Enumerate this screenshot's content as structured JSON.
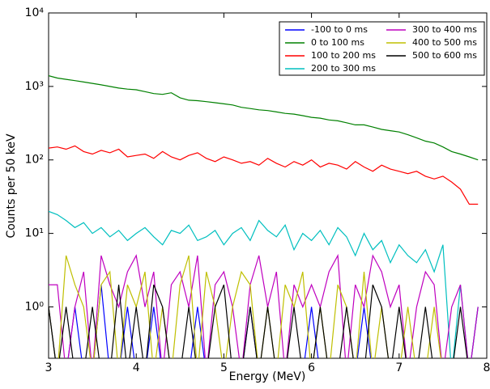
{
  "chart_data": {
    "type": "line",
    "xlabel": "Energy (MeV)",
    "ylabel": "Counts per 50 keV",
    "log_y": true,
    "legend": "upper right",
    "xlim": [
      3,
      8
    ],
    "xticks": [
      3,
      4,
      5,
      6,
      7,
      8
    ],
    "ylim": [
      0.2,
      10000
    ],
    "yticks": [
      {
        "value": 1,
        "label": "10⁰"
      },
      {
        "value": 10,
        "label": "10¹"
      },
      {
        "value": 100,
        "label": "10²"
      },
      {
        "value": 1000,
        "label": "10³"
      },
      {
        "value": 10000,
        "label": "10⁴"
      }
    ],
    "x": [
      3.0,
      3.1,
      3.2,
      3.3,
      3.4,
      3.5,
      3.6,
      3.7,
      3.8,
      3.9,
      4.0,
      4.1,
      4.2,
      4.3,
      4.4,
      4.5,
      4.6,
      4.7,
      4.8,
      4.9,
      5.0,
      5.1,
      5.2,
      5.3,
      5.4,
      5.5,
      5.6,
      5.7,
      5.8,
      5.9,
      6.0,
      6.1,
      6.2,
      6.3,
      6.4,
      6.5,
      6.6,
      6.7,
      6.8,
      6.9,
      7.0,
      7.1,
      7.2,
      7.3,
      7.4,
      7.5,
      7.6,
      7.7,
      7.8,
      7.9
    ],
    "series": [
      {
        "name": "-100 to 0 ms",
        "color": "#0000ff",
        "values": [
          1,
          0,
          0,
          1,
          0,
          0,
          2,
          0,
          0,
          1,
          0,
          0,
          1,
          0,
          0,
          0,
          0,
          1,
          0,
          0,
          0,
          0,
          0,
          1,
          0,
          0,
          0,
          0,
          0,
          0,
          1,
          0,
          0,
          0,
          0,
          0,
          1,
          0,
          0,
          0,
          0,
          0,
          0,
          0,
          0,
          0,
          0,
          0,
          0,
          1
        ]
      },
      {
        "name": "0 to 100 ms",
        "color": "#008000",
        "values": [
          1400,
          1300,
          1250,
          1200,
          1150,
          1100,
          1050,
          1000,
          950,
          920,
          900,
          850,
          800,
          780,
          820,
          700,
          650,
          640,
          620,
          600,
          580,
          560,
          520,
          500,
          480,
          470,
          450,
          430,
          420,
          400,
          380,
          370,
          350,
          340,
          320,
          300,
          300,
          280,
          260,
          250,
          240,
          220,
          200,
          180,
          170,
          150,
          130,
          120,
          110,
          100
        ]
      },
      {
        "name": "100 to 200 ms",
        "color": "#ff0000",
        "values": [
          145,
          150,
          140,
          155,
          130,
          120,
          135,
          125,
          140,
          110,
          115,
          120,
          105,
          130,
          110,
          100,
          115,
          125,
          105,
          95,
          110,
          100,
          90,
          95,
          85,
          105,
          90,
          80,
          95,
          85,
          100,
          80,
          90,
          85,
          75,
          95,
          80,
          70,
          85,
          75,
          70,
          65,
          70,
          60,
          55,
          60,
          50,
          40,
          25,
          25
        ]
      },
      {
        "name": "200 to 300 ms",
        "color": "#00bfbf",
        "values": [
          20,
          18,
          15,
          12,
          14,
          10,
          12,
          9,
          11,
          8,
          10,
          12,
          9,
          7,
          11,
          10,
          13,
          8,
          9,
          11,
          7,
          10,
          12,
          8,
          15,
          11,
          9,
          13,
          6,
          10,
          8,
          11,
          7,
          12,
          9,
          5,
          10,
          6,
          8,
          4,
          7,
          5,
          4,
          6,
          3,
          7,
          0,
          2,
          0,
          1
        ]
      },
      {
        "name": "300 to 400 ms",
        "color": "#bf00bf",
        "values": [
          2,
          2,
          0,
          1,
          3,
          0,
          5,
          2,
          1,
          3,
          5,
          1,
          3,
          0,
          2,
          3,
          1,
          5,
          0,
          2,
          3,
          1,
          0,
          2,
          5,
          1,
          3,
          0,
          2,
          1,
          2,
          1,
          3,
          5,
          0,
          2,
          1,
          5,
          3,
          1,
          2,
          0,
          1,
          3,
          2,
          0,
          1,
          2,
          0,
          1
        ]
      },
      {
        "name": "400 to 500 ms",
        "color": "#bfbf00",
        "values": [
          1,
          0,
          5,
          2,
          1,
          0,
          2,
          3,
          0,
          2,
          1,
          3,
          0,
          1,
          0,
          2,
          5,
          0,
          3,
          1,
          0,
          1,
          3,
          2,
          0,
          1,
          0,
          2,
          1,
          3,
          0,
          1,
          0,
          2,
          1,
          0,
          3,
          0,
          1,
          0,
          0,
          1,
          0,
          0,
          1,
          0,
          0,
          0,
          0,
          0
        ]
      },
      {
        "name": "500 to 600 ms",
        "color": "#000000",
        "values": [
          1,
          0,
          1,
          0,
          0,
          1,
          0,
          0,
          2,
          0,
          1,
          0,
          2,
          1,
          0,
          0,
          1,
          0,
          0,
          1,
          2,
          0,
          0,
          1,
          0,
          1,
          0,
          0,
          1,
          0,
          0,
          1,
          0,
          0,
          1,
          0,
          0,
          2,
          1,
          0,
          1,
          0,
          0,
          1,
          0,
          0,
          0,
          1,
          0,
          0
        ]
      }
    ]
  }
}
